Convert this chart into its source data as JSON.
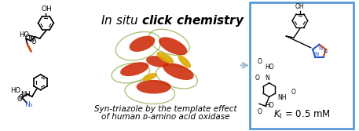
{
  "title": "In situ click chemistry",
  "subtitle_italic_part": "In situ",
  "bottom_text_line1": "Syn-triazole by the template effect",
  "bottom_text_line2": "of human ᴅ-amino acid oxidase",
  "ki_text": "Kᴵ = 0.5 mM",
  "bg_color": "#ffffff",
  "box_color": "#5b9bd5",
  "arrow_color": "#a0b8d0",
  "protein_red": "#cc2200",
  "protein_yellow": "#ddaa00",
  "protein_green": "#88aa44",
  "alkyne_color": "#cc4400",
  "azide_color": "#2255cc",
  "triazole_color_n": "#2255cc",
  "triazole_color_c": "#cc4400",
  "figsize": [
    4.57,
    1.67
  ],
  "dpi": 100
}
